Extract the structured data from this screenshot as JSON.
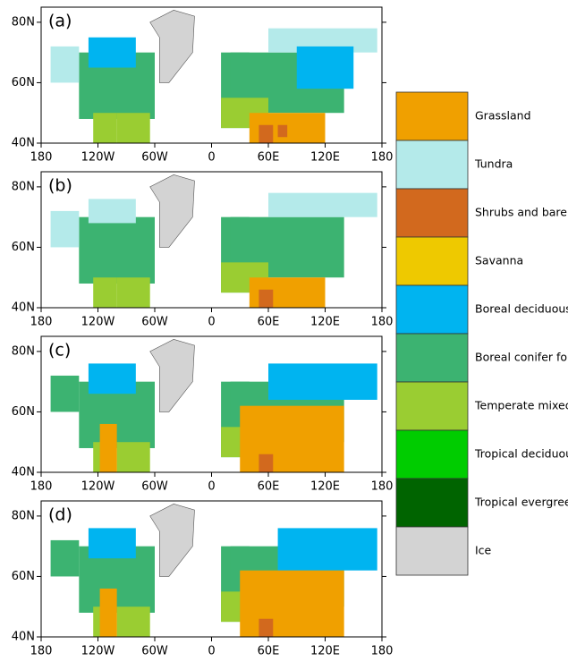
{
  "panels": [
    {
      "label": "(a)"
    },
    {
      "label": "(b)"
    },
    {
      "label": "(c)"
    },
    {
      "label": "(d)"
    }
  ],
  "map": {
    "xlim": [
      -180,
      180
    ],
    "ylim": [
      40,
      85
    ],
    "xticks": [
      {
        "value": -180,
        "label": "180"
      },
      {
        "value": -120,
        "label": "120W"
      },
      {
        "value": -60,
        "label": "60W"
      },
      0,
      {
        "value": 60,
        "label": "60E"
      },
      {
        "value": 120,
        "label": "120E"
      },
      180
    ],
    "yticks": [
      {
        "value": 40,
        "label": "40N"
      },
      {
        "value": 60,
        "label": "60N"
      },
      {
        "value": 80,
        "label": "80N"
      }
    ]
  },
  "legend": [
    {
      "name": "Grassland",
      "color": "#f0a000"
    },
    {
      "name": "Tundra",
      "color": "#b4eaea"
    },
    {
      "name": "Shrubs and bare ground",
      "color": "#d2691e"
    },
    {
      "name": "Savanna",
      "color": "#eec900"
    },
    {
      "name": "Boreal deciduous forest",
      "color": "#00b4f0"
    },
    {
      "name": "Boreal conifer forest",
      "color": "#3cb371"
    },
    {
      "name": "Temperate mixed forest",
      "color": "#9acd32"
    },
    {
      "name": "Tropical deciduous forest",
      "color": "#00cc00"
    },
    {
      "name": "Tropical evergreen forest",
      "color": "#006400"
    },
    {
      "name": "Ice",
      "color": "#d3d3d3"
    }
  ]
}
